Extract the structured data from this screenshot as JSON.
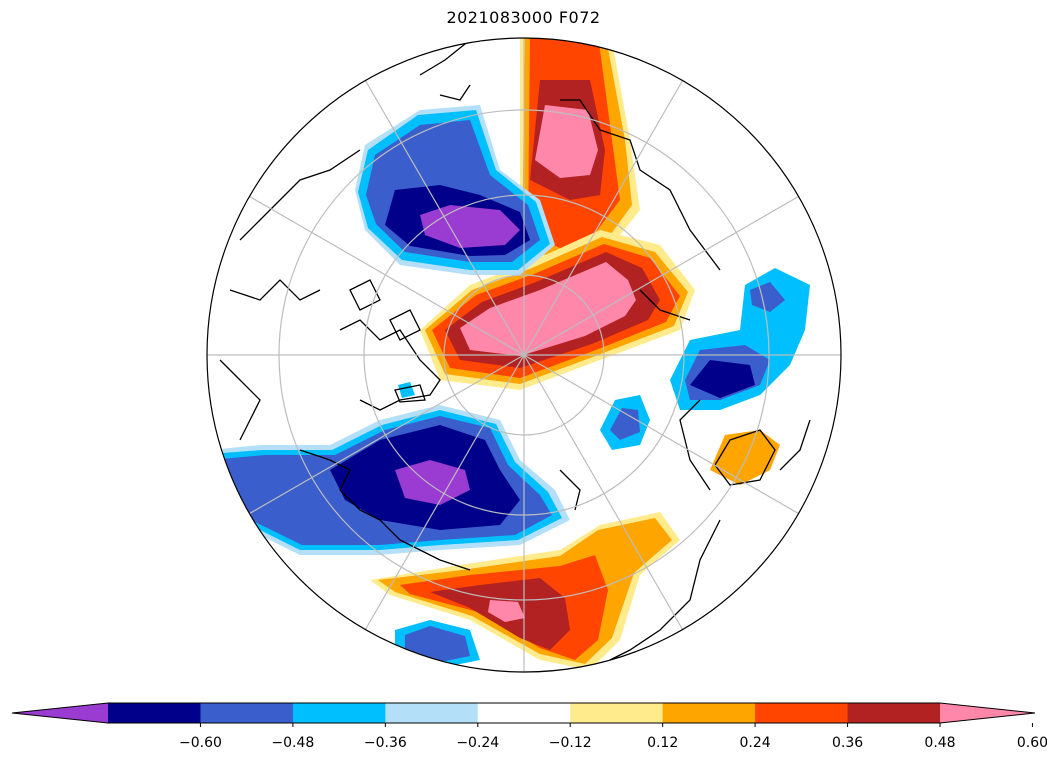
{
  "figure": {
    "title": "2021083000 F072"
  },
  "colorbar": {
    "levels": [
      -0.6,
      -0.48,
      -0.36,
      -0.24,
      -0.12,
      0.12,
      0.24,
      0.36,
      0.48,
      0.6
    ],
    "tick_labels": [
      "−0.60",
      "−0.48",
      "−0.36",
      "−0.24",
      "−0.12",
      "0.12",
      "0.24",
      "0.36",
      "0.48",
      "0.60"
    ],
    "colors": [
      "#9a3bd1",
      "#00008b",
      "#3a5fcd",
      "#00bfff",
      "#b3e0f8",
      "#ffffff",
      "#ffeb8c",
      "#ffa500",
      "#ff4500",
      "#b22222",
      "#ff88aa"
    ],
    "extend": "both"
  },
  "map": {
    "projection": "north-polar-stereographic",
    "gridlines": true,
    "coastlines": true
  }
}
